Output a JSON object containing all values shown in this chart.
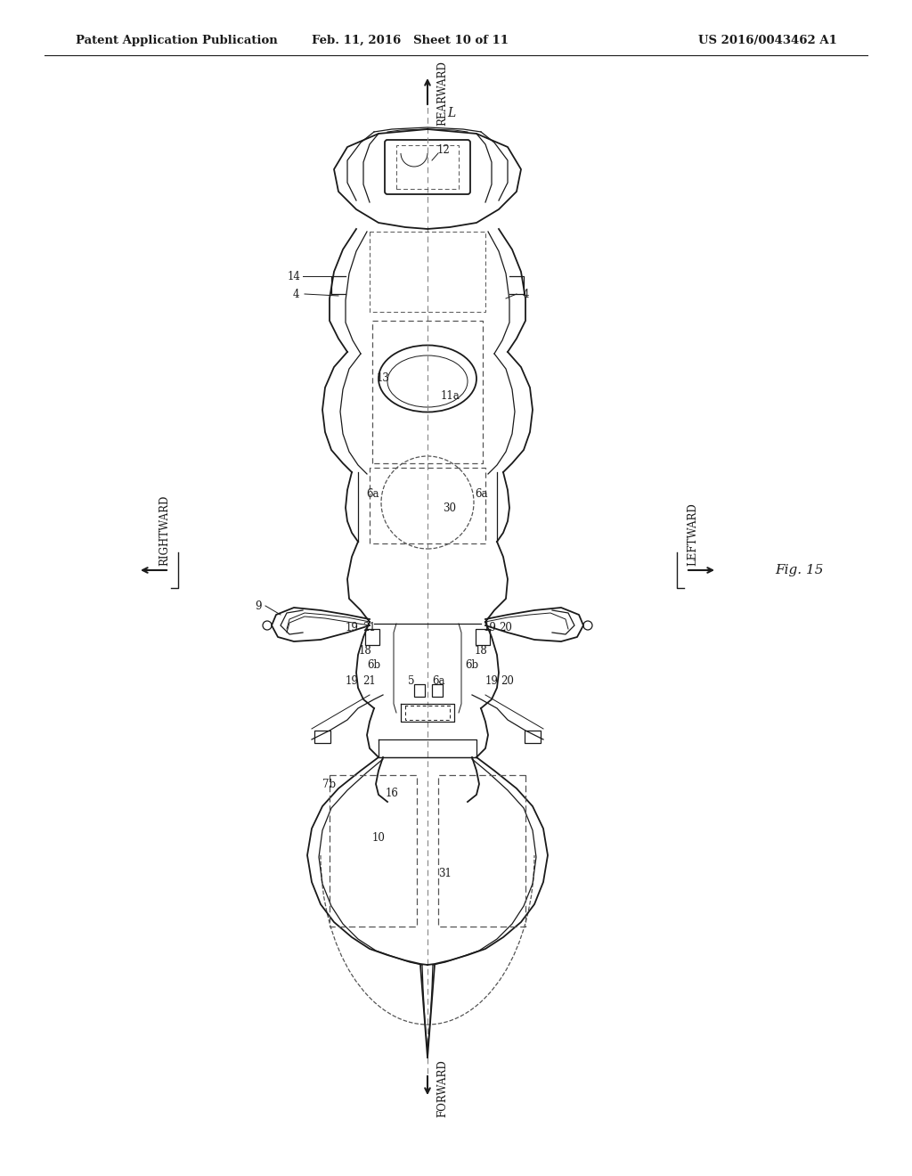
{
  "bg_color": "#ffffff",
  "header_left": "Patent Application Publication",
  "header_center": "Feb. 11, 2016   Sheet 10 of 11",
  "header_right": "US 2016/0043462 A1",
  "fig_label": "Fig. 15",
  "direction_top": "REARWARD",
  "direction_bottom": "FORWARD",
  "direction_left": "RIGHTWARD",
  "direction_right": "LEFTWARD",
  "center_line_label": "L",
  "line_color": "#1a1a1a",
  "dashed_color": "#555555"
}
